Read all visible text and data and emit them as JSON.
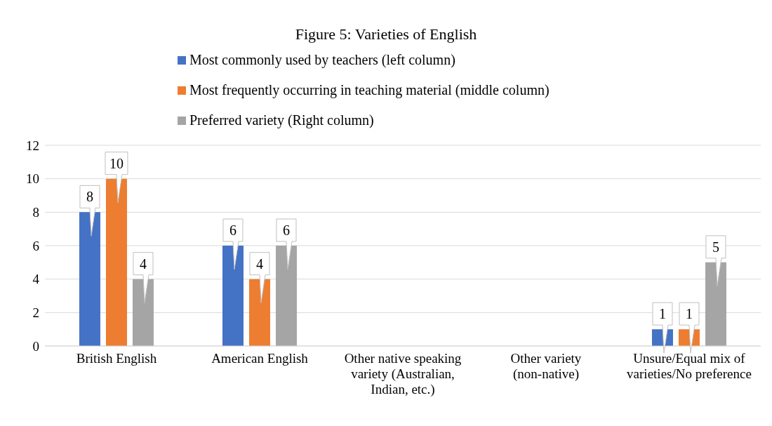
{
  "chart_data": {
    "type": "bar",
    "title": "Figure 5: Varieties of English",
    "categories": [
      "British English",
      "American English",
      "Other native speaking variety (Australian, Indian, etc.)",
      "Other variety (non-native)",
      "Unsure/Equal mix of varieties/No preference"
    ],
    "series": [
      {
        "name": "Most commonly used by teachers (left column)",
        "color": "#4472c4",
        "values": [
          8,
          6,
          0,
          0,
          1
        ],
        "value_labels": [
          "8",
          "6",
          null,
          null,
          "1"
        ]
      },
      {
        "name": "Most frequently occurring in teaching material (middle column)",
        "color": "#ed7d31",
        "values": [
          10,
          4,
          0,
          0,
          1
        ],
        "value_labels": [
          "10",
          "4",
          null,
          null,
          "1"
        ]
      },
      {
        "name": "Preferred variety (Right column)",
        "color": "#a5a5a5",
        "values": [
          4,
          6,
          0,
          0,
          5
        ],
        "value_labels": [
          "4",
          "6",
          null,
          null,
          "5"
        ]
      }
    ],
    "ylim": [
      0,
      12
    ],
    "yticks": [
      0,
      2,
      4,
      6,
      8,
      10,
      12
    ],
    "grid": "y",
    "legend": "top"
  }
}
